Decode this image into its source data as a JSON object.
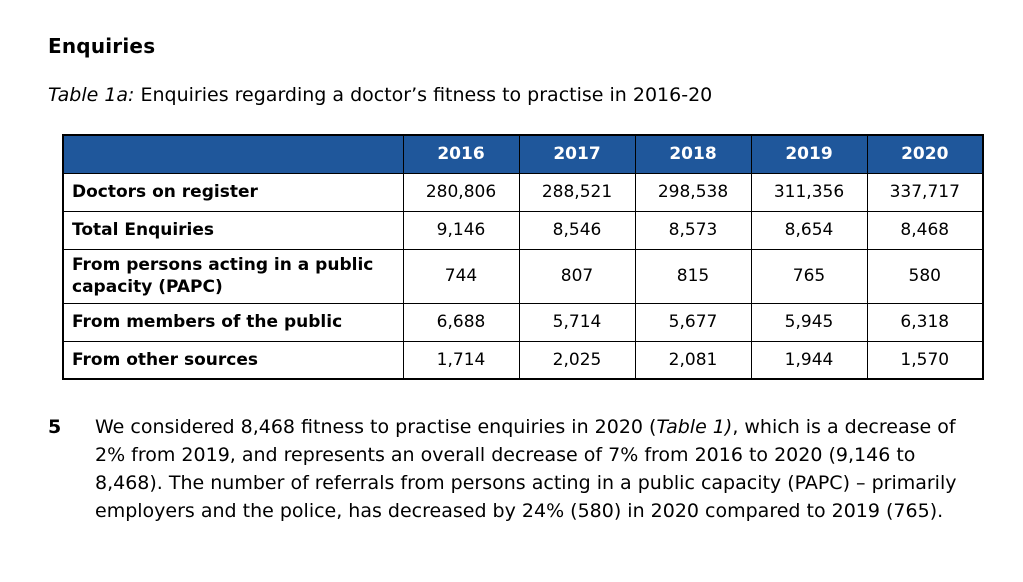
{
  "page": {
    "heading": "Enquiries",
    "caption": {
      "label": "Table 1a:",
      "text": " Enquiries regarding a doctor’s fitness to practise in 2016-20"
    }
  },
  "colors": {
    "header_bg": "#1F579B",
    "header_text": "#FFFFFF",
    "border": "#000000"
  },
  "chart_data": {
    "type": "table",
    "title": "Enquiries regarding a doctor’s fitness to practise in 2016-20",
    "columns": [
      "",
      "2016",
      "2017",
      "2018",
      "2019",
      "2020"
    ],
    "rows": [
      {
        "label": "Doctors on register",
        "values": [
          "280,806",
          "288,521",
          "298,538",
          "311,356",
          "337,717"
        ]
      },
      {
        "label": "Total Enquiries",
        "values": [
          "9,146",
          "8,546",
          "8,573",
          "8,654",
          "8,468"
        ]
      },
      {
        "label": "From persons acting in a public capacity (PAPC)",
        "values": [
          "744",
          "807",
          "815",
          "765",
          "580"
        ]
      },
      {
        "label": "From members of the public",
        "values": [
          "6,688",
          "5,714",
          "5,677",
          "5,945",
          "6,318"
        ]
      },
      {
        "label": "From other sources",
        "values": [
          "1,714",
          "2,025",
          "2,081",
          "1,944",
          "1,570"
        ]
      }
    ]
  },
  "paragraph": {
    "number": "5",
    "before_italic": "We considered 8,468 fitness to practise enquiries in 2020 (",
    "italic": "Table 1)",
    "after_italic": ", which is a decrease of 2% from 2019, and represents an overall decrease of 7% from 2016 to 2020 (9,146 to 8,468). The number of referrals from persons acting in a public capacity (PAPC) – primarily employers and the police, has decreased by 24% (580) in 2020 compared to 2019 (765)."
  }
}
